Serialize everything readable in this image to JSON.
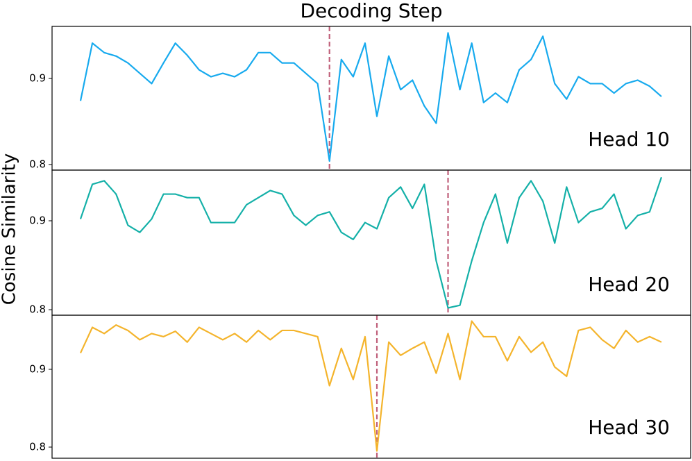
{
  "title": "Decoding Step",
  "ylabel": "Cosine Similarity",
  "chart_data": [
    {
      "type": "line",
      "annotation": "Head 10",
      "x": [
        0,
        1,
        2,
        3,
        4,
        5,
        6,
        7,
        8,
        9,
        10,
        11,
        12,
        13,
        14,
        15,
        16,
        17,
        18,
        19,
        20,
        21,
        22,
        23,
        24,
        25,
        26,
        27,
        28,
        29,
        30,
        31,
        32,
        33,
        34,
        35,
        36,
        37,
        38,
        39,
        40,
        41,
        42,
        43,
        44,
        45,
        46,
        47,
        48,
        49
      ],
      "xlim": [
        -2.4,
        51.46
      ],
      "ylim": [
        0.7935,
        0.9605
      ],
      "yticks": [
        0.8,
        0.9
      ],
      "vline": 21,
      "vline_color": "#c0607a",
      "series": [
        {
          "color": "#17aaee",
          "values": [
            0.874,
            0.941,
            0.93,
            0.926,
            0.918,
            0.906,
            0.894,
            0.918,
            0.941,
            0.927,
            0.91,
            0.902,
            0.906,
            0.902,
            0.91,
            0.93,
            0.93,
            0.918,
            0.918,
            0.906,
            0.894,
            0.804,
            0.922,
            0.902,
            0.941,
            0.856,
            0.926,
            0.887,
            0.898,
            0.868,
            0.848,
            0.953,
            0.887,
            0.941,
            0.872,
            0.883,
            0.872,
            0.91,
            0.922,
            0.949,
            0.894,
            0.876,
            0.902,
            0.894,
            0.894,
            0.883,
            0.894,
            0.898,
            0.891,
            0.879
          ]
        }
      ]
    },
    {
      "type": "line",
      "annotation": "Head 20",
      "x": [
        0,
        1,
        2,
        3,
        4,
        5,
        6,
        7,
        8,
        9,
        10,
        11,
        12,
        13,
        14,
        15,
        16,
        17,
        18,
        19,
        20,
        21,
        22,
        23,
        24,
        25,
        26,
        27,
        28,
        29,
        30,
        31,
        32,
        33,
        34,
        35,
        36,
        37,
        38,
        39,
        40,
        41,
        42,
        43,
        44,
        45,
        46,
        47,
        48,
        49
      ],
      "xlim": [
        -2.4,
        51.46
      ],
      "ylim": [
        0.7938,
        0.957
      ],
      "yticks": [
        0.8,
        0.9
      ],
      "vline": 31,
      "vline_color": "#c0607a",
      "series": [
        {
          "color": "#14b0a8",
          "values": [
            0.902,
            0.941,
            0.945,
            0.93,
            0.895,
            0.887,
            0.902,
            0.93,
            0.93,
            0.926,
            0.926,
            0.898,
            0.898,
            0.898,
            0.918,
            0.926,
            0.934,
            0.93,
            0.906,
            0.895,
            0.906,
            0.91,
            0.887,
            0.879,
            0.898,
            0.891,
            0.926,
            0.938,
            0.914,
            0.941,
            0.855,
            0.802,
            0.805,
            0.855,
            0.898,
            0.93,
            0.875,
            0.926,
            0.945,
            0.922,
            0.875,
            0.938,
            0.898,
            0.91,
            0.914,
            0.93,
            0.891,
            0.906,
            0.91,
            0.949
          ]
        }
      ]
    },
    {
      "type": "line",
      "annotation": "Head 30",
      "x": [
        0,
        1,
        2,
        3,
        4,
        5,
        6,
        7,
        8,
        9,
        10,
        11,
        12,
        13,
        14,
        15,
        16,
        17,
        18,
        19,
        20,
        21,
        22,
        23,
        24,
        25,
        26,
        27,
        28,
        29,
        30,
        31,
        32,
        33,
        34,
        35,
        36,
        37,
        38,
        39,
        40,
        41,
        42,
        43,
        44,
        45,
        46,
        47,
        48,
        49
      ],
      "xlim": [
        -2.4,
        51.46
      ],
      "ylim": [
        0.7857,
        0.9696
      ],
      "yticks": [
        0.8,
        0.9
      ],
      "vline": 25,
      "vline_color": "#c0607a",
      "series": [
        {
          "color": "#f4b42c",
          "values": [
            0.921,
            0.954,
            0.946,
            0.957,
            0.95,
            0.938,
            0.946,
            0.942,
            0.949,
            0.935,
            0.954,
            0.946,
            0.938,
            0.946,
            0.935,
            0.95,
            0.938,
            0.95,
            0.95,
            0.946,
            0.942,
            0.879,
            0.927,
            0.887,
            0.942,
            0.795,
            0.935,
            0.918,
            0.927,
            0.935,
            0.895,
            0.946,
            0.887,
            0.962,
            0.942,
            0.942,
            0.911,
            0.942,
            0.922,
            0.935,
            0.903,
            0.891,
            0.95,
            0.954,
            0.938,
            0.927,
            0.95,
            0.935,
            0.942,
            0.935
          ]
        }
      ]
    }
  ]
}
